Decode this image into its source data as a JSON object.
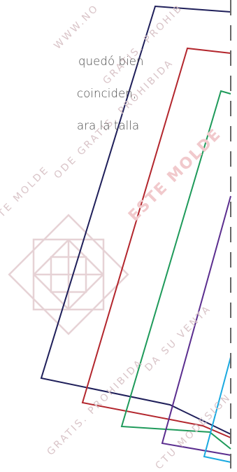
{
  "body_text": {
    "line1": "quedó bien",
    "line2": "coinciden,",
    "line3": "ara la talla"
  },
  "watermarks": {
    "top_right": "WWW.NO",
    "prohibida_top": "GRATIS. PROHIB",
    "moldes_mid": "ODE GRATIS. PROHIBIDA",
    "moldes_left": "TE MOLDE",
    "este_molde": "ESTE MOLDE",
    "venta": "DA SU VENTA",
    "bottom_left": "GRATIS. PROHIBIDA",
    "bottom_right": "CTU MODESIGN"
  },
  "colors": {
    "text": "#4a4a4a",
    "watermark": "#d9c4c8",
    "watermark_bold": "#f1c9cc",
    "logo": "#e6d2d5",
    "line_navy": "#1f1f5a",
    "line_red": "#b3262d",
    "line_green": "#1e9a5a",
    "line_purple": "#5b2e8f",
    "line_cyan": "#1aa9e0",
    "dashed": "#666666"
  }
}
